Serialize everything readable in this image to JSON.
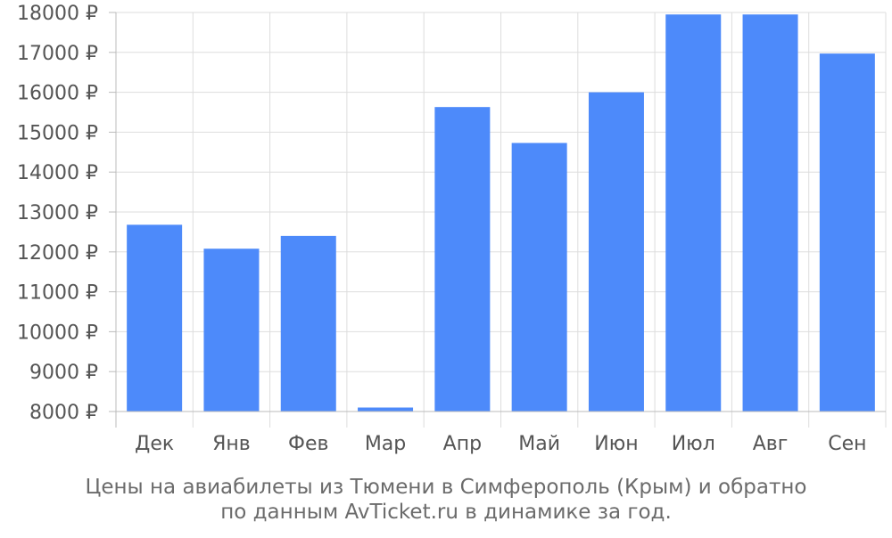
{
  "chart_data": {
    "type": "bar",
    "categories": [
      "Дек",
      "Янв",
      "Фев",
      "Мар",
      "Апр",
      "Май",
      "Июн",
      "Июл",
      "Авг",
      "Сен"
    ],
    "values": [
      12680,
      12080,
      12400,
      8100,
      15630,
      14730,
      16000,
      17950,
      17950,
      16970
    ],
    "ylim": [
      8000,
      18000
    ],
    "yticks": [
      8000,
      9000,
      10000,
      11000,
      12000,
      13000,
      14000,
      15000,
      16000,
      17000,
      18000
    ],
    "tick_suffix": " ₽",
    "grid": true,
    "colors": {
      "bar": "#4d8afa",
      "grid": "#dddddd",
      "axis": "#bbbbbb",
      "tick_text": "#555555"
    }
  },
  "caption": {
    "line1": "Цены на авиабилеты из Тюмени в Симферополь (Крым) и обратно",
    "line2": "по данным AvTicket.ru в динамике за год."
  }
}
